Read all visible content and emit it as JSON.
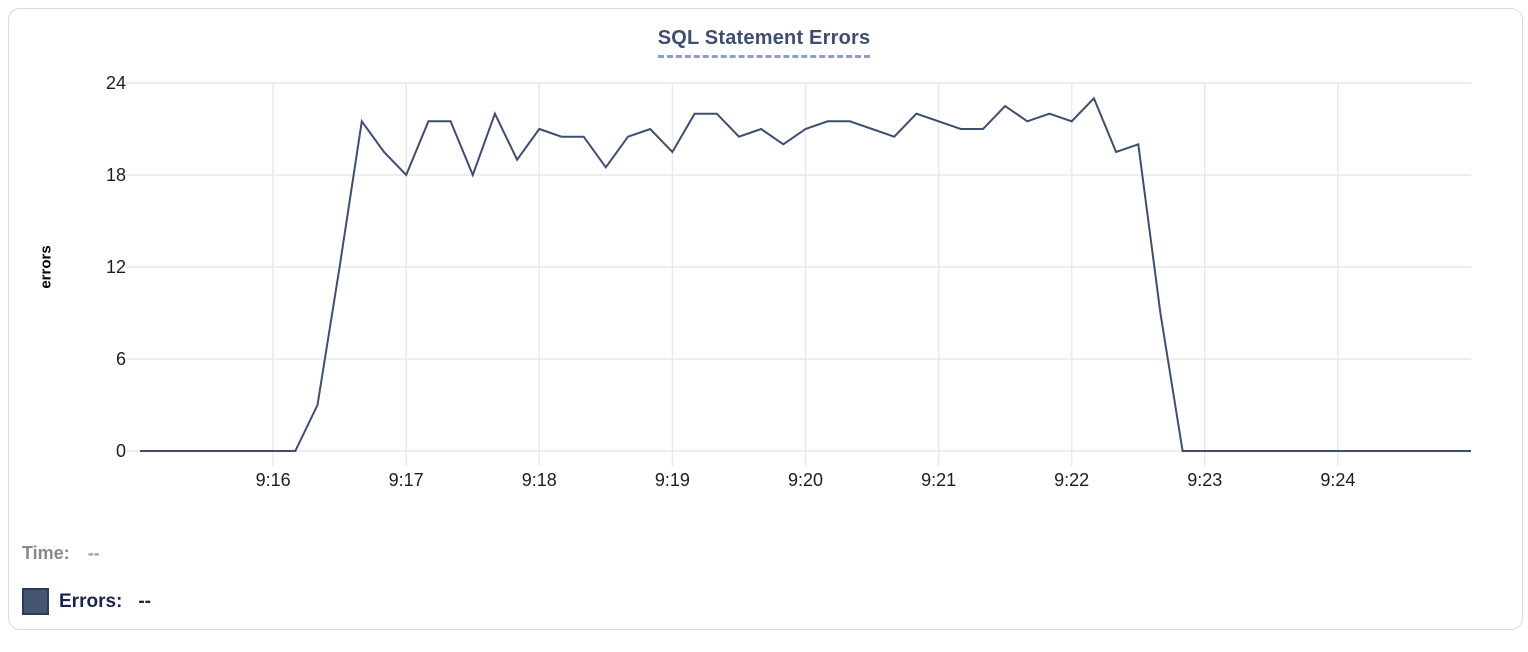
{
  "panel": {
    "title": "SQL Statement Errors"
  },
  "tooltip_readout": {
    "time_label": "Time:",
    "time_value": "--",
    "errors_label": "Errors:",
    "errors_value": "--"
  },
  "colors": {
    "title_text": "#3d4e6e",
    "title_underline": "#8fa0bd",
    "series_line": "#3e4e6e",
    "legend_swatch": "#475670",
    "legend_errors_text": "#172649",
    "time_text_gray": "#87898e",
    "gridline": "#e9e9e9",
    "axis_tick_text": "#1d1d1f",
    "card_border": "#dbdbdb"
  },
  "chart_data": {
    "type": "line",
    "title": "SQL Statement Errors",
    "xlabel": "",
    "ylabel": "errors",
    "ylim": [
      0,
      24
    ],
    "y_ticks": [
      0,
      6,
      12,
      18,
      24
    ],
    "x_tick_labels": [
      "9:16",
      "9:17",
      "9:18",
      "9:19",
      "9:20",
      "9:21",
      "9:22",
      "9:23",
      "9:24"
    ],
    "x_range": [
      "9:15:00",
      "9:25:00"
    ],
    "sample_interval_seconds": 10,
    "grid": true,
    "legend_position": "bottom-left",
    "series": [
      {
        "name": "Errors",
        "color": "#3e4e6e",
        "times": [
          "9:15:00",
          "9:15:10",
          "9:15:20",
          "9:15:30",
          "9:15:40",
          "9:15:50",
          "9:16:00",
          "9:16:10",
          "9:16:20",
          "9:16:30",
          "9:16:40",
          "9:16:50",
          "9:17:00",
          "9:17:10",
          "9:17:20",
          "9:17:30",
          "9:17:40",
          "9:17:50",
          "9:18:00",
          "9:18:10",
          "9:18:20",
          "9:18:30",
          "9:18:40",
          "9:18:50",
          "9:19:00",
          "9:19:10",
          "9:19:20",
          "9:19:30",
          "9:19:40",
          "9:19:50",
          "9:20:00",
          "9:20:10",
          "9:20:20",
          "9:20:30",
          "9:20:40",
          "9:20:50",
          "9:21:00",
          "9:21:10",
          "9:21:20",
          "9:21:30",
          "9:21:40",
          "9:21:50",
          "9:22:00",
          "9:22:10",
          "9:22:20",
          "9:22:30",
          "9:22:40",
          "9:22:50",
          "9:23:00",
          "9:23:10",
          "9:23:20",
          "9:23:30",
          "9:23:40",
          "9:23:50",
          "9:24:00",
          "9:24:10",
          "9:24:20",
          "9:24:30",
          "9:24:40",
          "9:24:50",
          "9:25:00"
        ],
        "values": [
          0,
          0,
          0,
          0,
          0,
          0,
          0,
          0,
          3,
          12,
          21.5,
          19.5,
          18,
          21.5,
          21.5,
          18,
          22,
          19,
          21,
          20.5,
          20.5,
          18.5,
          20.5,
          21,
          19.5,
          22,
          22,
          20.5,
          21,
          20,
          21,
          21.5,
          21.5,
          21,
          20.5,
          22,
          21.5,
          21,
          21,
          22.5,
          21.5,
          22,
          21.5,
          23,
          19.5,
          20,
          9,
          0,
          0,
          0,
          0,
          0,
          0,
          0,
          0,
          0,
          0,
          0,
          0,
          0,
          0
        ]
      }
    ]
  }
}
